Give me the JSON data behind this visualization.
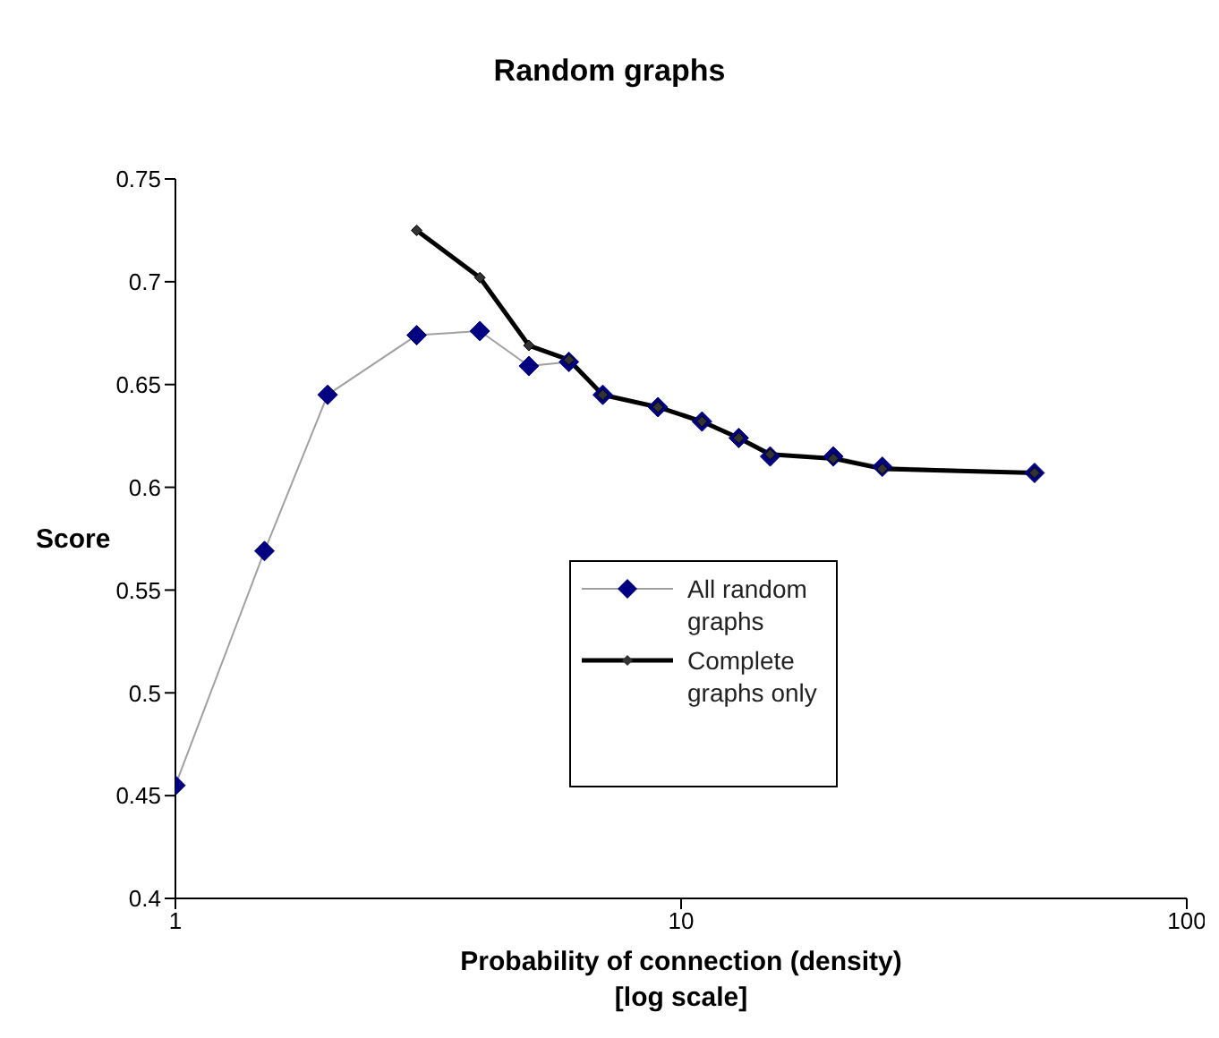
{
  "chart_data": {
    "type": "line",
    "title": "Random graphs",
    "xlabel": "Probability of connection (density) [log scale]",
    "ylabel": "Score",
    "log": "x",
    "xlim": [
      1,
      100
    ],
    "xticks": [
      1,
      10,
      100
    ],
    "ylim": [
      0.4,
      0.75
    ],
    "yticks": [
      0.4,
      0.45,
      0.5,
      0.55,
      0.6,
      0.65,
      0.7,
      0.75
    ],
    "grid": false,
    "legend": "right",
    "marker": "diamond",
    "series": [
      {
        "name": "All random graphs",
        "color": "#000080",
        "x": [
          1,
          1.5,
          2,
          3,
          4,
          5,
          6,
          7,
          9,
          11,
          13,
          15,
          20,
          25,
          50
        ],
        "values": [
          0.455,
          0.569,
          0.645,
          0.674,
          0.676,
          0.659,
          0.661,
          0.645,
          0.639,
          0.632,
          0.624,
          0.615,
          0.615,
          0.61,
          0.607
        ]
      },
      {
        "name": "Complete graphs only",
        "color": "#000000",
        "x": [
          3,
          4,
          5,
          6,
          7,
          9,
          11,
          13,
          15,
          20,
          25,
          50
        ],
        "values": [
          0.725,
          0.702,
          0.669,
          0.662,
          0.645,
          0.639,
          0.632,
          0.624,
          0.616,
          0.614,
          0.609,
          0.607
        ]
      }
    ]
  }
}
